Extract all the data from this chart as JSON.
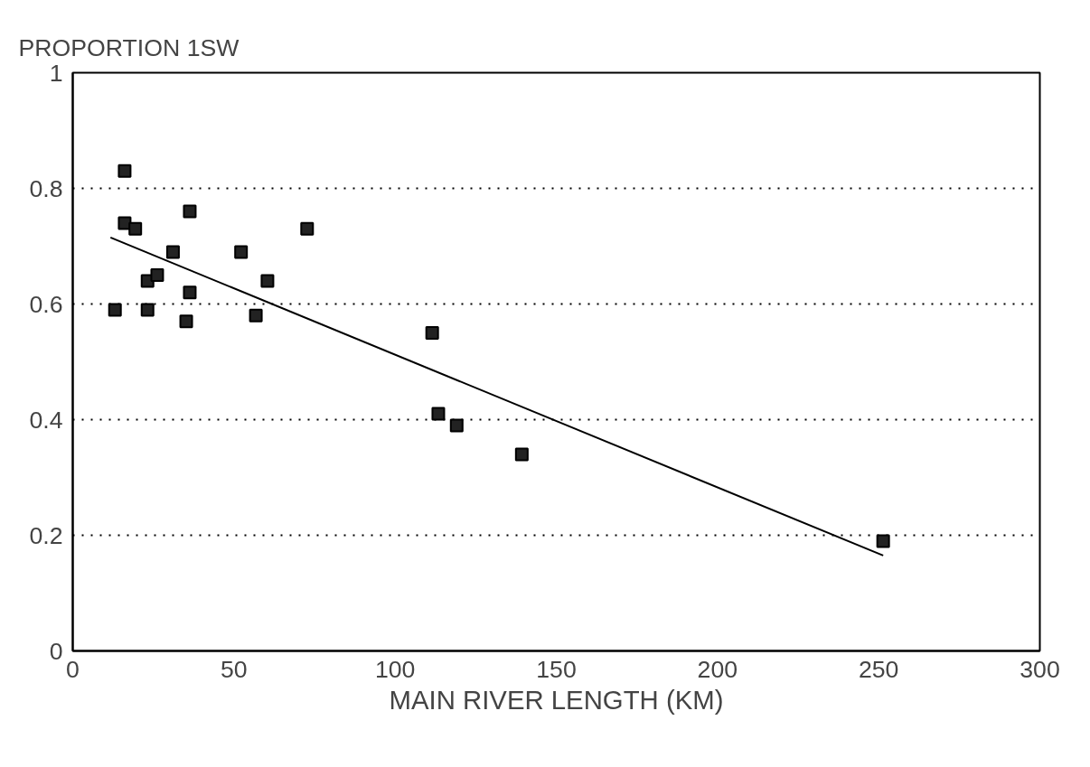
{
  "chart_data": {
    "type": "scatter",
    "ylabel": "PROPORTION 1SW",
    "xlabel": "MAIN RIVER LENGTH (KM)",
    "xlim": [
      0,
      300
    ],
    "xticks": [
      0,
      50,
      100,
      150,
      200,
      250,
      300
    ],
    "ylim": [
      0,
      1
    ],
    "yticks": [
      0,
      0.2,
      0.4,
      0.6,
      0.8,
      1
    ],
    "grid": "y",
    "series": [
      {
        "marker": "square",
        "color": "#222222",
        "x": [
          13.1,
          16.1,
          16.1,
          19.4,
          23.2,
          23.2,
          26.2,
          31.1,
          36.3,
          36.3,
          35.2,
          52.2,
          56.8,
          60.4,
          72.7,
          111.5,
          113.4,
          119.1,
          139.3,
          251.4
        ],
        "values": [
          0.59,
          0.83,
          0.74,
          0.73,
          0.64,
          0.59,
          0.65,
          0.69,
          0.76,
          0.62,
          0.57,
          0.69,
          0.58,
          0.64,
          0.73,
          0.55,
          0.41,
          0.39,
          0.34,
          0.19
        ]
      },
      {
        "type": "line",
        "color": "#000000",
        "x": [
          11.7,
          251.4
        ],
        "values": [
          0.715,
          0.165
        ]
      }
    ]
  }
}
